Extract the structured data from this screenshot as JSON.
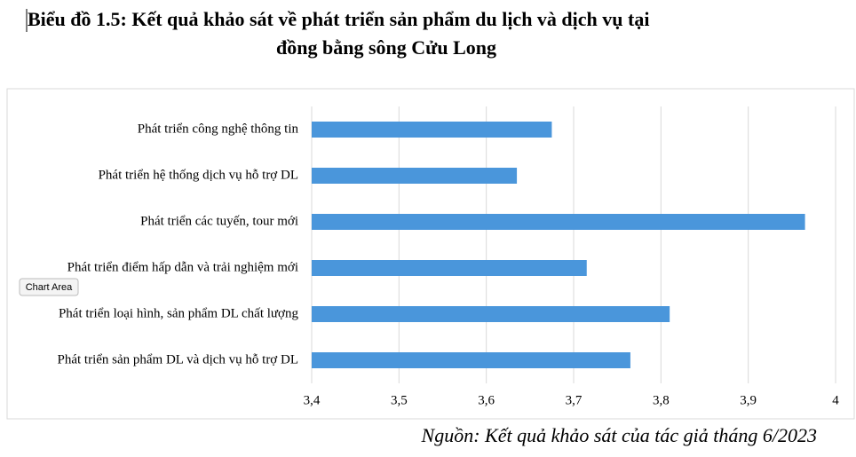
{
  "chart_data": {
    "type": "bar",
    "orientation": "horizontal",
    "title": [
      "Biểu đồ 1.5: Kết quả khảo sát về phát triển sản phẩm du lịch và dịch vụ tại",
      "đồng bằng sông Cửu Long"
    ],
    "categories": [
      "Phát triển công nghệ thông tin",
      "Phát triển hệ thống dịch vụ hỗ trợ DL",
      "Phát triển các tuyến, tour mới",
      "Phát triển điểm hấp dẫn và trải nghiệm mới",
      "Phát triển loại hình, sản phẩm DL chất lượng",
      "Phát triển sản phẩm DL và dịch vụ hỗ trợ DL"
    ],
    "values": [
      3.675,
      3.635,
      3.965,
      3.715,
      3.81,
      3.765
    ],
    "color": "#4a96db",
    "xlim": [
      3.4,
      4
    ],
    "xticks": [
      {
        "value": 3.4,
        "label": "3,4"
      },
      {
        "value": 3.5,
        "label": "3,5"
      },
      {
        "value": 3.6,
        "label": "3,6"
      },
      {
        "value": 3.7,
        "label": "3,7"
      },
      {
        "value": 3.8,
        "label": "3,8"
      },
      {
        "value": 3.9,
        "label": "3,9"
      },
      4
    ],
    "grid": true,
    "tooltip": "Chart Area",
    "source": "Nguồn: Kết quả khảo sát của tác giả tháng 6/2023"
  }
}
